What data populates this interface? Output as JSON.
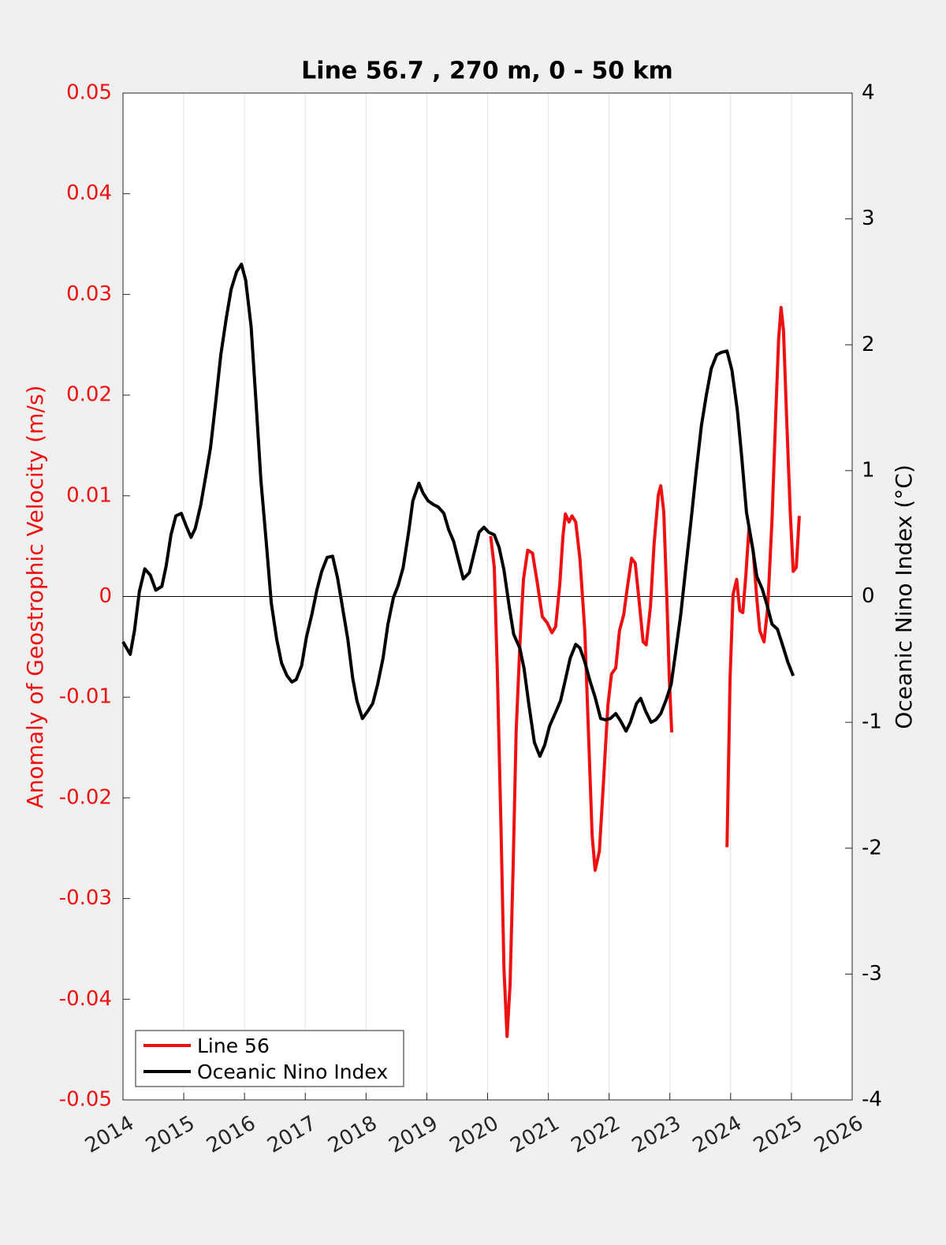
{
  "chart_data": {
    "type": "line",
    "title": "Line 56.7 , 270 m, 0 - 50 km",
    "y_label": "Anomaly of Geostrophic Velocity (m/s)",
    "y2_label": "Oceanic Nino Index (°C)",
    "xlim": [
      2014,
      2026
    ],
    "xticks": [
      2014,
      2015,
      2016,
      2017,
      2018,
      2019,
      2020,
      2021,
      2022,
      2023,
      2024,
      2025,
      2026
    ],
    "ylim": [
      -0.05,
      0.05
    ],
    "yticks": [
      -0.05,
      -0.04,
      -0.03,
      -0.02,
      -0.01,
      0,
      0.01,
      0.02,
      0.03,
      0.04,
      0.05
    ],
    "y2lim": [
      -4,
      4
    ],
    "y2ticks": [
      -4,
      -3,
      -2,
      -1,
      0,
      1,
      2,
      3,
      4
    ],
    "grid": "x",
    "legend": "lower left",
    "series": [
      {
        "name": "Line 56",
        "color": "#ee1111",
        "x": [
          2020.05,
          2020.11,
          2020.16,
          2020.22,
          2020.27,
          2020.32,
          2020.37,
          2020.42,
          2020.47,
          2020.53,
          2020.59,
          2020.66,
          2020.74,
          2020.82,
          2020.9,
          2020.98,
          2021.06,
          2021.12,
          2021.19,
          2021.24,
          2021.28,
          2021.34,
          2021.39,
          2021.45,
          2021.52,
          2021.6,
          2021.67,
          2021.72,
          2021.77,
          2021.84,
          2021.91,
          2021.98,
          2022.04,
          2022.11,
          2022.17,
          2022.24,
          2022.3,
          2022.37,
          2022.43,
          2022.49,
          2022.56,
          2022.61,
          2022.68,
          2022.74,
          2022.81,
          2022.85,
          2022.9,
          2022.95,
          2022.99,
          2023.03,
          null,
          2023.94,
          2023.99,
          2024.04,
          2024.1,
          2024.15,
          2024.2,
          2024.25,
          2024.3,
          2024.37,
          2024.43,
          2024.48,
          2024.55,
          2024.61,
          2024.68,
          2024.74,
          2024.79,
          2024.83,
          2024.87,
          2024.92,
          2024.98,
          2025.03,
          2025.08,
          2025.13
        ],
        "values": [
          0.006,
          0.0029,
          -0.0073,
          -0.0229,
          -0.037,
          -0.0437,
          -0.0386,
          -0.0269,
          -0.0135,
          -0.0049,
          0.0017,
          0.0046,
          0.0043,
          0.0013,
          -0.002,
          -0.0026,
          -0.0036,
          -0.003,
          0.0013,
          0.006,
          0.0082,
          0.0074,
          0.008,
          0.0074,
          0.0037,
          -0.0034,
          -0.0151,
          -0.0237,
          -0.0272,
          -0.0253,
          -0.0182,
          -0.0108,
          -0.0077,
          -0.0071,
          -0.0034,
          -0.0018,
          0.0009,
          0.0038,
          0.0033,
          -0.0002,
          -0.0045,
          -0.0048,
          -0.001,
          0.0052,
          0.0101,
          0.011,
          0.0084,
          -0.0002,
          -0.0081,
          -0.0135,
          null,
          -0.0249,
          -0.0081,
          0.0002,
          0.0017,
          -0.0014,
          -0.0016,
          0.0021,
          0.0067,
          0.0045,
          -0.0002,
          -0.0034,
          -0.0045,
          -0.001,
          0.0076,
          0.0178,
          0.0256,
          0.0287,
          0.0264,
          0.0178,
          0.0084,
          0.0025,
          0.0029,
          0.008
        ]
      },
      {
        "name": "Oceanic Nino Index",
        "color": "#000000",
        "axis": "y2",
        "x": [
          2014.0,
          2014.12,
          2014.19,
          2014.27,
          2014.36,
          2014.45,
          2014.54,
          2014.64,
          2014.71,
          2014.79,
          2014.87,
          2014.96,
          2015.04,
          2015.12,
          2015.19,
          2015.28,
          2015.36,
          2015.44,
          2015.52,
          2015.61,
          2015.7,
          2015.78,
          2015.87,
          2015.95,
          2016.02,
          2016.11,
          2016.19,
          2016.27,
          2016.36,
          2016.44,
          2016.53,
          2016.61,
          2016.7,
          2016.78,
          2016.85,
          2016.94,
          2017.02,
          2017.11,
          2017.19,
          2017.27,
          2017.36,
          2017.45,
          2017.53,
          2017.61,
          2017.7,
          2017.78,
          2017.85,
          2017.94,
          2018.03,
          2018.11,
          2018.19,
          2018.28,
          2018.36,
          2018.45,
          2018.53,
          2018.61,
          2018.7,
          2018.77,
          2018.87,
          2018.94,
          2019.02,
          2019.11,
          2019.19,
          2019.28,
          2019.36,
          2019.44,
          2019.53,
          2019.6,
          2019.7,
          2019.77,
          2019.86,
          2019.94,
          2020.02,
          2020.11,
          2020.19,
          2020.27,
          2020.36,
          2020.43,
          2020.53,
          2020.6,
          2020.68,
          2020.77,
          2020.86,
          2020.94,
          2021.02,
          2021.11,
          2021.2,
          2021.28,
          2021.36,
          2021.45,
          2021.52,
          2021.6,
          2021.69,
          2021.77,
          2021.86,
          2021.94,
          2022.02,
          2022.11,
          2022.19,
          2022.28,
          2022.35,
          2022.45,
          2022.52,
          2022.6,
          2022.69,
          2022.77,
          2022.85,
          2022.94,
          2023.02,
          2023.09,
          2023.18,
          2023.26,
          2023.35,
          2023.43,
          2023.52,
          2023.6,
          2023.68,
          2023.77,
          2023.85,
          2023.94,
          2024.02,
          2024.11,
          2024.18,
          2024.26,
          2024.36,
          2024.43,
          2024.52,
          2024.6,
          2024.68,
          2024.77,
          2024.85,
          2024.94,
          2025.03
        ],
        "values": [
          -0.36,
          -0.46,
          -0.27,
          0.04,
          0.22,
          0.17,
          0.05,
          0.08,
          0.24,
          0.49,
          0.64,
          0.66,
          0.56,
          0.47,
          0.54,
          0.73,
          0.95,
          1.18,
          1.52,
          1.92,
          2.21,
          2.44,
          2.58,
          2.64,
          2.51,
          2.14,
          1.54,
          0.92,
          0.42,
          -0.05,
          -0.34,
          -0.53,
          -0.63,
          -0.68,
          -0.66,
          -0.55,
          -0.32,
          -0.14,
          0.05,
          0.2,
          0.31,
          0.32,
          0.15,
          -0.08,
          -0.34,
          -0.65,
          -0.83,
          -0.97,
          -0.91,
          -0.85,
          -0.7,
          -0.49,
          -0.22,
          -0.01,
          0.09,
          0.23,
          0.51,
          0.76,
          0.9,
          0.82,
          0.76,
          0.73,
          0.71,
          0.66,
          0.53,
          0.44,
          0.27,
          0.14,
          0.19,
          0.33,
          0.51,
          0.55,
          0.51,
          0.49,
          0.39,
          0.21,
          -0.09,
          -0.3,
          -0.41,
          -0.57,
          -0.86,
          -1.16,
          -1.27,
          -1.18,
          -1.03,
          -0.93,
          -0.83,
          -0.66,
          -0.49,
          -0.38,
          -0.41,
          -0.52,
          -0.68,
          -0.8,
          -0.97,
          -0.98,
          -0.97,
          -0.93,
          -0.99,
          -1.07,
          -1.0,
          -0.85,
          -0.81,
          -0.91,
          -1.0,
          -0.98,
          -0.93,
          -0.82,
          -0.7,
          -0.46,
          -0.14,
          0.22,
          0.61,
          0.98,
          1.36,
          1.6,
          1.81,
          1.92,
          1.94,
          1.95,
          1.8,
          1.48,
          1.12,
          0.67,
          0.39,
          0.16,
          0.06,
          -0.07,
          -0.22,
          -0.26,
          -0.38,
          -0.52,
          -0.63
        ]
      }
    ]
  }
}
